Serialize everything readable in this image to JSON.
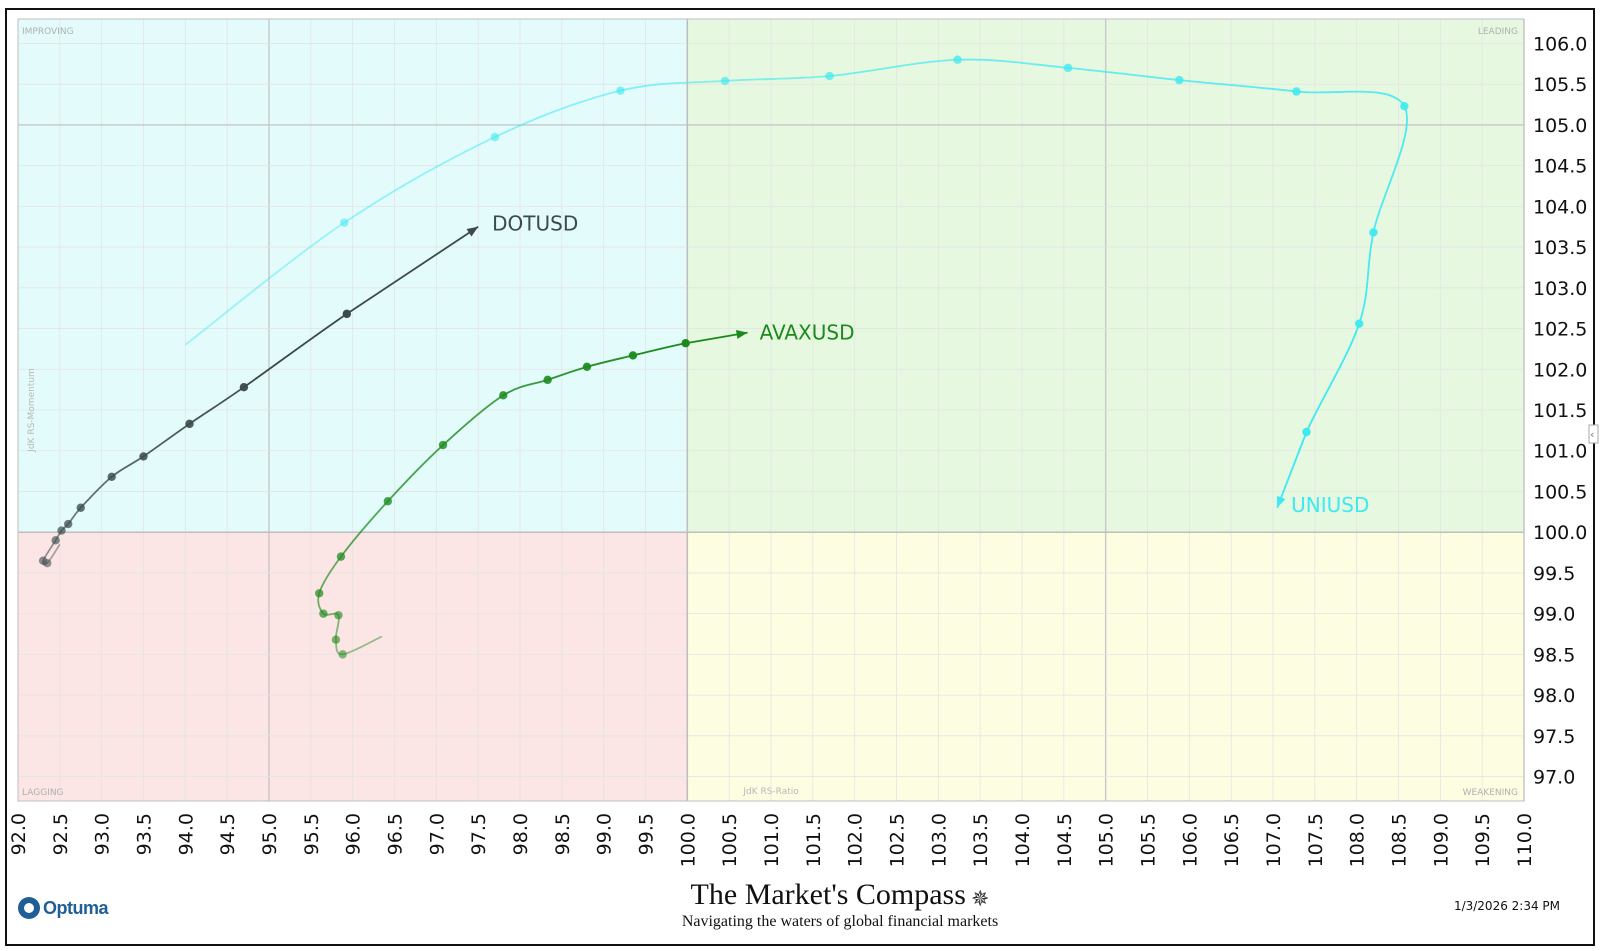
{
  "chart_data": {
    "type": "scatter",
    "subtype": "relative-rotation-graph",
    "xlabel": "JdK RS-Ratio",
    "ylabel": "JdK RS-Momentum",
    "xlim": [
      92.0,
      110.0
    ],
    "ylim": [
      96.7,
      106.3
    ],
    "x_ticks": [
      "92.0",
      "92.5",
      "93.0",
      "93.5",
      "94.0",
      "94.5",
      "95.0",
      "95.5",
      "96.0",
      "96.5",
      "97.0",
      "97.5",
      "98.0",
      "98.5",
      "99.0",
      "99.5",
      "100.0",
      "100.5",
      "101.0",
      "101.5",
      "102.0",
      "102.5",
      "103.0",
      "103.5",
      "104.0",
      "104.5",
      "105.0",
      "105.5",
      "106.0",
      "106.5",
      "107.0",
      "107.5",
      "108.0",
      "108.5",
      "109.0",
      "109.5",
      "110.0"
    ],
    "y_ticks": [
      "97.0",
      "97.5",
      "98.0",
      "98.5",
      "99.0",
      "99.5",
      "100.0",
      "100.5",
      "101.0",
      "101.5",
      "102.0",
      "102.5",
      "103.0",
      "103.5",
      "104.0",
      "104.5",
      "105.0",
      "105.5",
      "106.0"
    ],
    "center": [
      100.0,
      100.0
    ],
    "quadrants": {
      "top_left": "IMPROVING",
      "top_right": "LEADING",
      "bottom_left": "LAGGING",
      "bottom_right": "WEAKENING"
    },
    "quadrant_colors": {
      "improving": "#e3fbfb",
      "leading": "#e6f8e0",
      "lagging": "#fce5e5",
      "weakening": "#fdfde2"
    },
    "grid": true,
    "series": [
      {
        "name": "UNIUSD",
        "color": "#3de9f2",
        "tail_start": [
          94.0,
          102.3
        ],
        "points": [
          [
            95.9,
            103.8
          ],
          [
            97.7,
            104.85
          ],
          [
            99.2,
            105.42
          ],
          [
            100.45,
            105.54
          ],
          [
            101.7,
            105.6
          ],
          [
            103.23,
            105.8
          ],
          [
            104.55,
            105.7
          ],
          [
            105.88,
            105.55
          ],
          [
            107.28,
            105.41
          ],
          [
            108.57,
            105.23
          ],
          [
            108.2,
            103.68
          ],
          [
            108.03,
            102.56
          ],
          [
            107.4,
            101.23
          ]
        ],
        "head": [
          107.05,
          100.3
        ]
      },
      {
        "name": "DOTUSD",
        "color": "#3b4a4a",
        "tail_start": [
          92.5,
          99.85
        ],
        "points": [
          [
            92.35,
            99.62
          ],
          [
            92.3,
            99.65
          ],
          [
            92.45,
            99.9
          ],
          [
            92.52,
            100.02
          ],
          [
            92.6,
            100.1
          ],
          [
            92.75,
            100.3
          ],
          [
            93.12,
            100.68
          ],
          [
            93.5,
            100.93
          ],
          [
            94.05,
            101.33
          ],
          [
            94.7,
            101.78
          ],
          [
            95.93,
            102.68
          ]
        ],
        "head": [
          97.5,
          103.75
        ]
      },
      {
        "name": "AVAXUSD",
        "color": "#1c8a1c",
        "tail_start": [
          96.35,
          98.72
        ],
        "points": [
          [
            95.88,
            98.5
          ],
          [
            95.8,
            98.68
          ],
          [
            95.83,
            98.98
          ],
          [
            95.65,
            99.0
          ],
          [
            95.6,
            99.25
          ],
          [
            95.86,
            99.7
          ],
          [
            96.42,
            100.38
          ],
          [
            97.08,
            101.07
          ],
          [
            97.8,
            101.68
          ],
          [
            98.33,
            101.87
          ],
          [
            98.8,
            102.03
          ],
          [
            99.35,
            102.17
          ],
          [
            99.98,
            102.32
          ]
        ],
        "head": [
          100.72,
          102.45
        ]
      }
    ]
  },
  "footer": {
    "logo_text": "Optuma",
    "brand_title": "The Market's Compass",
    "brand_subtitle": "Navigating the waters of global financial markets",
    "timestamp": "1/3/2026 2:34 PM"
  }
}
